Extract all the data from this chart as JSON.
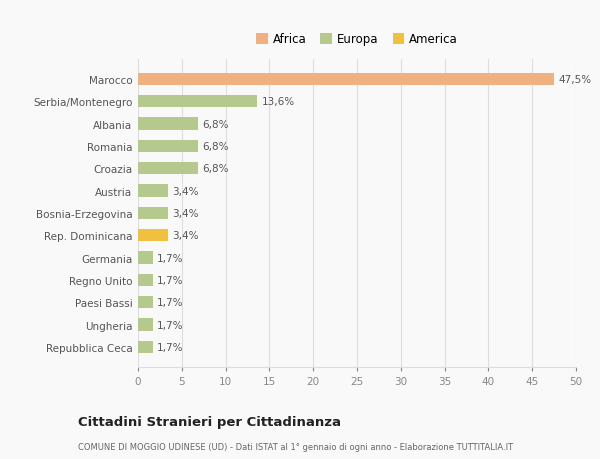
{
  "categories": [
    "Repubblica Ceca",
    "Ungheria",
    "Paesi Bassi",
    "Regno Unito",
    "Germania",
    "Rep. Dominicana",
    "Bosnia-Erzegovina",
    "Austria",
    "Croazia",
    "Romania",
    "Albania",
    "Serbia/Montenegro",
    "Marocco"
  ],
  "values": [
    1.7,
    1.7,
    1.7,
    1.7,
    1.7,
    3.4,
    3.4,
    3.4,
    6.8,
    6.8,
    6.8,
    13.6,
    47.5
  ],
  "labels": [
    "1,7%",
    "1,7%",
    "1,7%",
    "1,7%",
    "1,7%",
    "3,4%",
    "3,4%",
    "3,4%",
    "6,8%",
    "6,8%",
    "6,8%",
    "13,6%",
    "47,5%"
  ],
  "colors": [
    "#b5c98e",
    "#b5c98e",
    "#b5c98e",
    "#b5c98e",
    "#b5c98e",
    "#f0c040",
    "#b5c98e",
    "#b5c98e",
    "#b5c98e",
    "#b5c98e",
    "#b5c98e",
    "#b5c98e",
    "#f0b080"
  ],
  "legend_labels": [
    "Africa",
    "Europa",
    "America"
  ],
  "legend_colors": [
    "#f0b080",
    "#b5c98e",
    "#f0c040"
  ],
  "title": "Cittadini Stranieri per Cittadinanza",
  "subtitle": "COMUNE DI MOGGIO UDINESE (UD) - Dati ISTAT al 1° gennaio di ogni anno - Elaborazione TUTTITALIA.IT",
  "xlim": [
    0,
    50
  ],
  "xticks": [
    0,
    5,
    10,
    15,
    20,
    25,
    30,
    35,
    40,
    45,
    50
  ],
  "background_color": "#f9f9f9",
  "grid_color": "#dddddd",
  "bar_height": 0.55
}
